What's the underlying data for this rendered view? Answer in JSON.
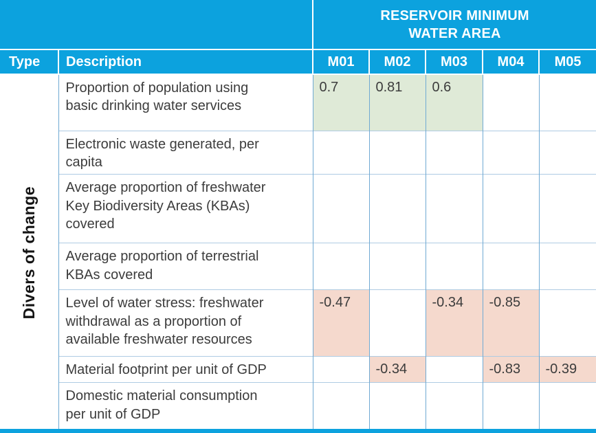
{
  "header": {
    "group_title": "RESERVOIR MINIMUM\nWATER AREA",
    "type_label": "Type",
    "description_label": "Description",
    "model_columns": [
      "M01",
      "M02",
      "M03",
      "M04",
      "M05"
    ]
  },
  "row_group_label": "Divers of change",
  "rows": [
    {
      "description": "Proportion of population using\nbasic drinking water services",
      "cells": [
        "0.7",
        "0.81",
        "0.6",
        "",
        ""
      ]
    },
    {
      "description": "Electronic waste generated, per\ncapita",
      "cells": [
        "",
        "",
        "",
        "",
        ""
      ]
    },
    {
      "description": "Average proportion of freshwater\nKey Biodiversity Areas (KBAs)\ncovered",
      "cells": [
        "",
        "",
        "",
        "",
        ""
      ]
    },
    {
      "description": "Average proportion of terrestrial\nKBAs covered",
      "cells": [
        "",
        "",
        "",
        "",
        ""
      ]
    },
    {
      "description": "Level of water stress: freshwater\nwithdrawal as a proportion of\navailable freshwater resources",
      "cells": [
        "-0.47",
        "",
        "-0.34",
        "-0.85",
        ""
      ]
    },
    {
      "description": "Material footprint per unit of GDP",
      "cells": [
        "",
        "-0.34",
        "",
        "-0.83",
        "-0.39"
      ]
    },
    {
      "description": "Domestic material consumption\nper unit of GDP",
      "cells": [
        "",
        "",
        "",
        "",
        ""
      ]
    }
  ],
  "colors": {
    "header_bg": "#0ca2de",
    "positive_cell_bg": "#dfead7",
    "negative_cell_bg": "#f5d9cd",
    "vertical_border": "#6fa9d3",
    "horizontal_border": "#aecbe3",
    "body_text": "#3c3c3c",
    "header_text": "#ffffff"
  },
  "chart_data": {
    "type": "heatmap",
    "title": "RESERVOIR MINIMUM WATER AREA",
    "row_group": "Divers of change",
    "columns": [
      "M01",
      "M02",
      "M03",
      "M04",
      "M05"
    ],
    "rows": [
      "Proportion of population using basic drinking water services",
      "Electronic waste generated, per capita",
      "Average proportion of freshwater Key Biodiversity Areas (KBAs) covered",
      "Average proportion of terrestrial KBAs covered",
      "Level of water stress: freshwater withdrawal as a proportion of available freshwater resources",
      "Material footprint per unit of GDP",
      "Domestic material consumption per unit of GDP"
    ],
    "values": [
      [
        0.7,
        0.81,
        0.6,
        null,
        null
      ],
      [
        null,
        null,
        null,
        null,
        null
      ],
      [
        null,
        null,
        null,
        null,
        null
      ],
      [
        null,
        null,
        null,
        null,
        null
      ],
      [
        -0.47,
        null,
        -0.34,
        -0.85,
        null
      ],
      [
        null,
        -0.34,
        null,
        -0.83,
        -0.39
      ],
      [
        null,
        null,
        null,
        null,
        null
      ]
    ],
    "legend": "positive values shaded green, negative values shaded red",
    "positive_color": "#dfead7",
    "negative_color": "#f5d9cd"
  }
}
